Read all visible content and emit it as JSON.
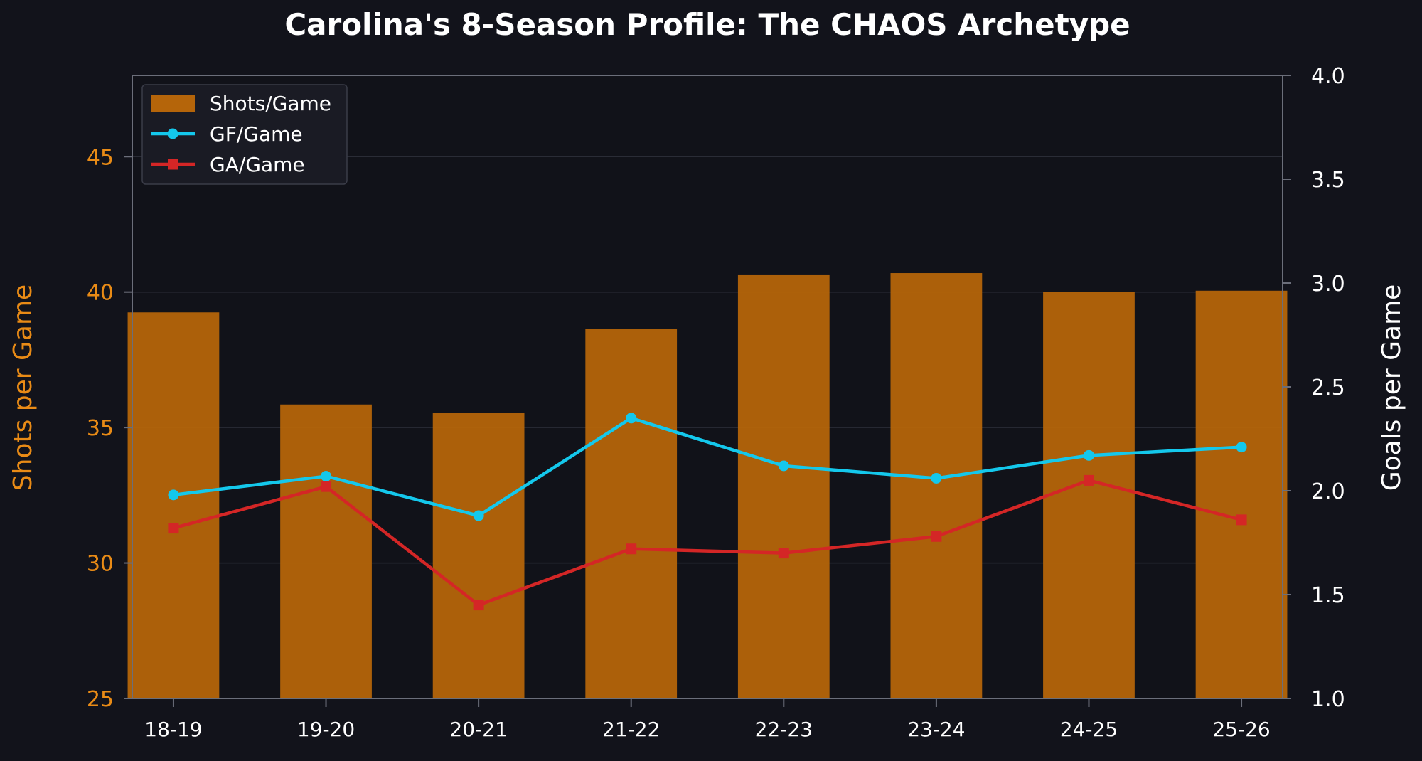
{
  "chart_data": {
    "type": "bar",
    "title": "Carolina's 8-Season Profile: The CHAOS Archetype",
    "categories": [
      "18-19",
      "19-20",
      "20-21",
      "21-22",
      "22-23",
      "23-24",
      "24-25",
      "25-26"
    ],
    "series": [
      {
        "name": "Shots/Game",
        "type": "bar",
        "axis": "left",
        "color": "#b5650a",
        "values": [
          39.25,
          35.85,
          35.55,
          38.65,
          40.65,
          40.7,
          40.0,
          40.05
        ]
      },
      {
        "name": "GF/Game",
        "type": "line",
        "axis": "right",
        "marker": "circle",
        "color": "#14c8ec",
        "values": [
          1.98,
          2.07,
          1.88,
          2.35,
          2.12,
          2.06,
          2.17,
          2.21
        ]
      },
      {
        "name": "GA/Game",
        "type": "line",
        "axis": "right",
        "marker": "square",
        "color": "#d42626",
        "values": [
          1.82,
          2.02,
          1.45,
          1.72,
          1.7,
          1.78,
          2.05,
          1.86
        ]
      }
    ],
    "ylabel": "Shots per Game",
    "ylim": [
      25,
      48
    ],
    "yticks": [
      25,
      30,
      35,
      40,
      45
    ],
    "ylabel_right": "Goals per Game",
    "ylim_right": [
      1.0,
      4.0
    ],
    "yticks_right": [
      "1.0",
      "1.5",
      "2.0",
      "2.5",
      "3.0",
      "3.5",
      "4.0"
    ],
    "legend_position": "top-left",
    "grid": true,
    "colors": {
      "background": "#12131b",
      "plot_background": "#111219",
      "axis": "#6b6e7a",
      "left_axis_text": "#e98b16",
      "right_axis_text": "#ffffff"
    }
  }
}
